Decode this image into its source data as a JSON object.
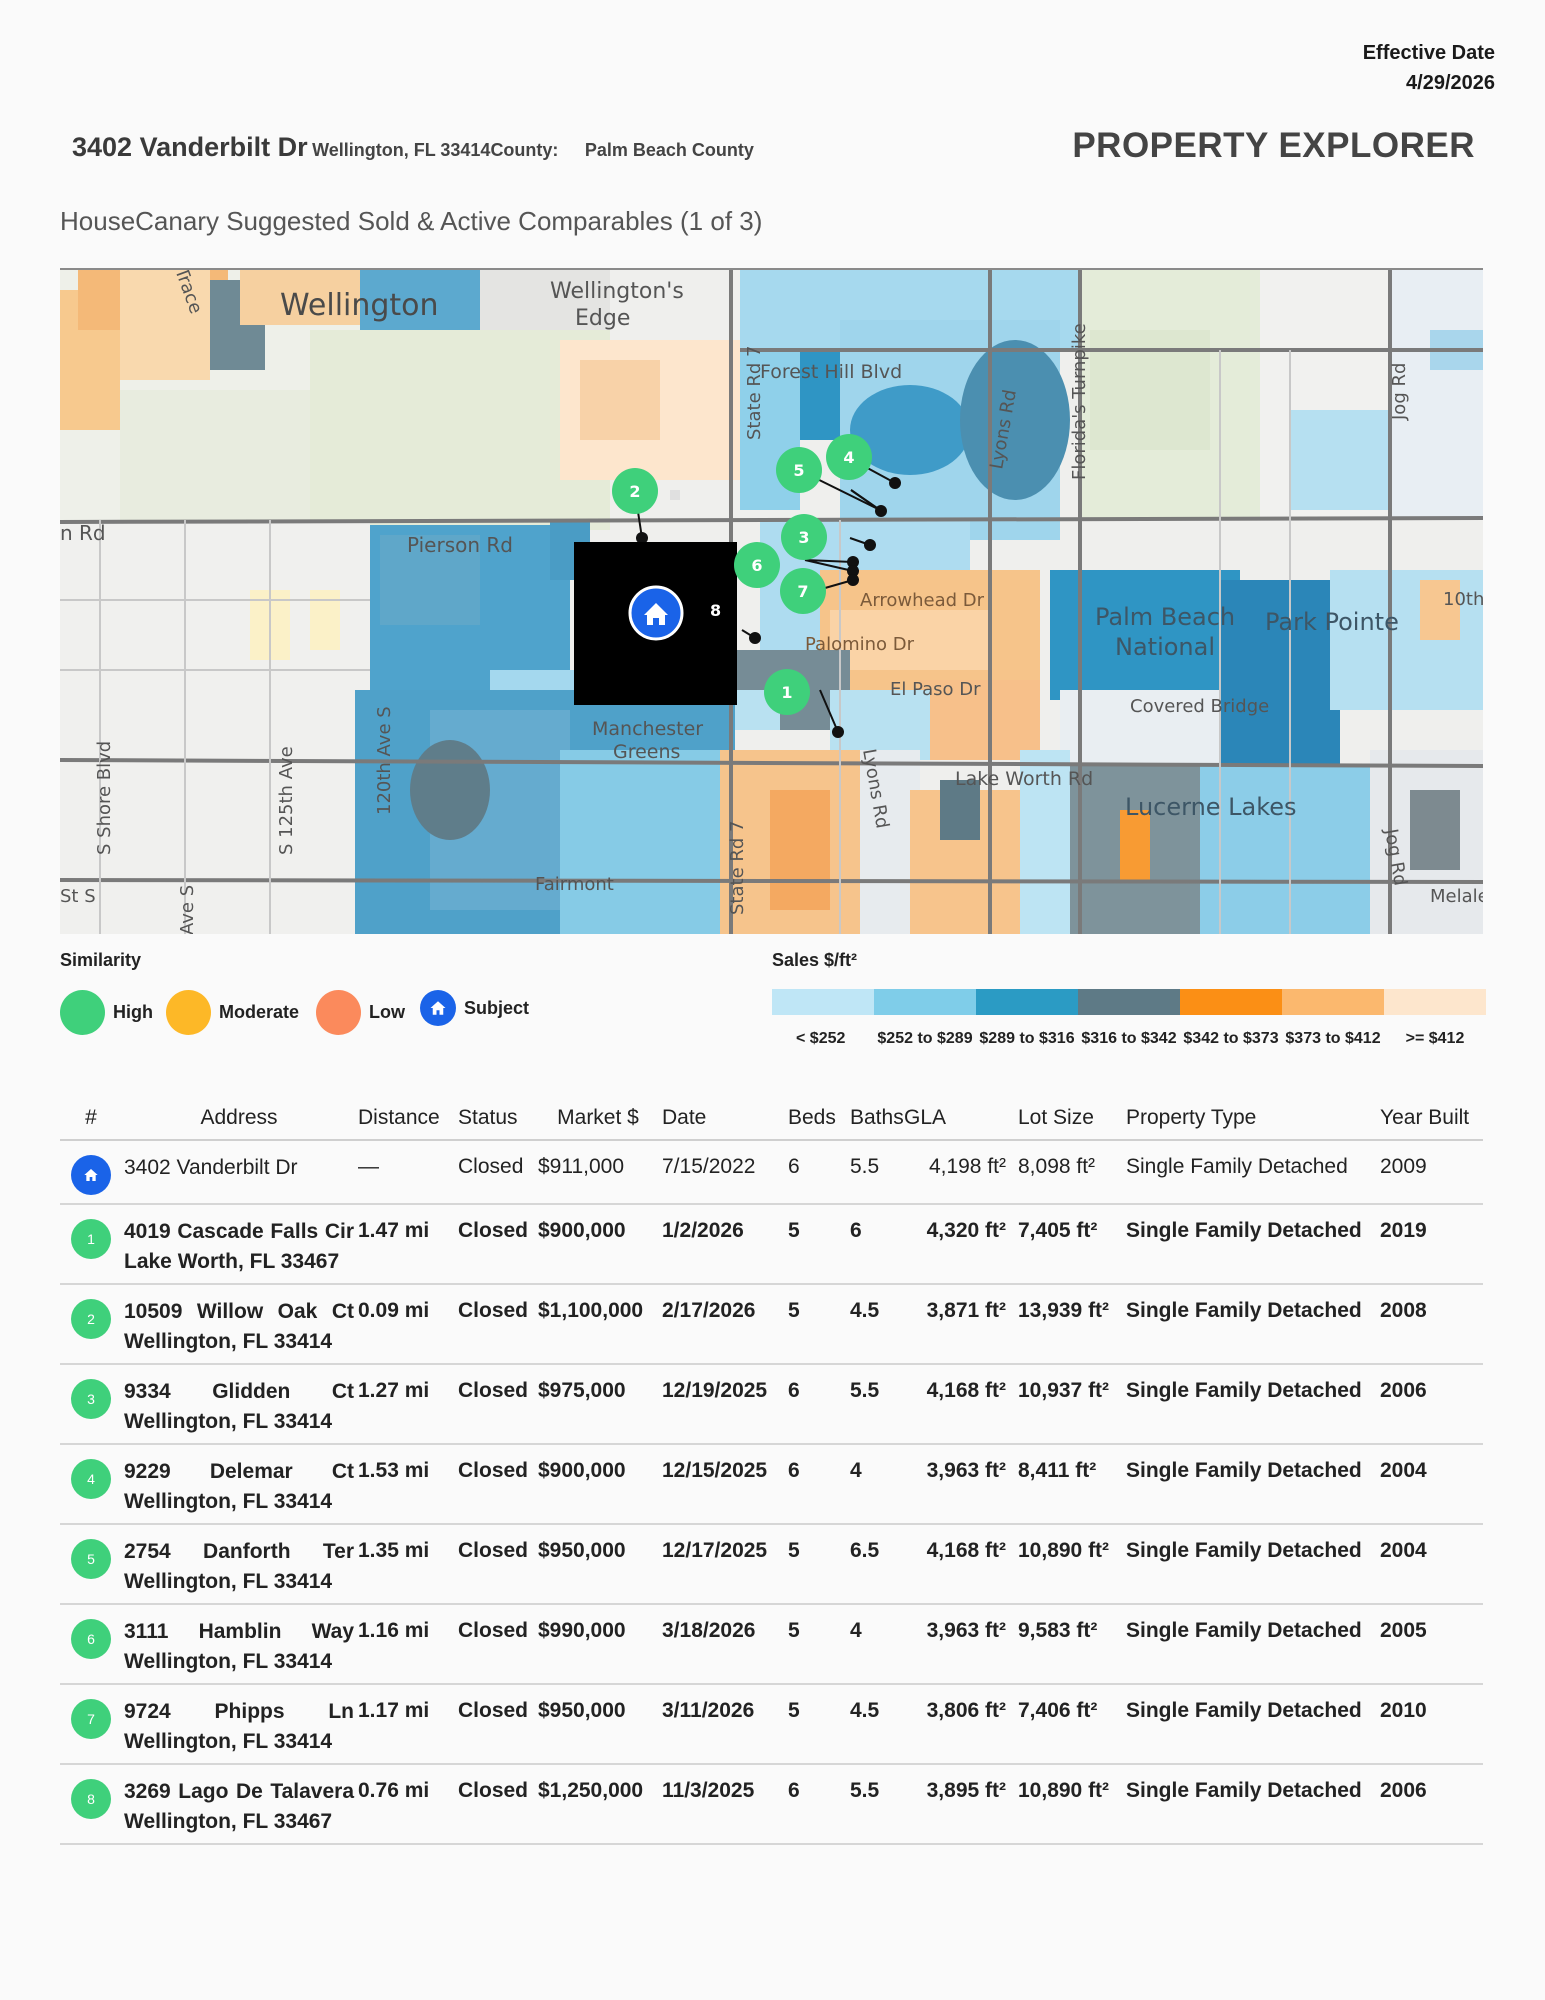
{
  "header": {
    "effective_label": "Effective Date",
    "effective_date": "4/29/2026",
    "street": "3402 Vanderbilt Dr",
    "city_line": "Wellington, FL 33414",
    "county_label": "County:",
    "county_value": "Palm Beach County",
    "brand": "PROPERTY EXPLORER",
    "section_title": "HouseCanary Suggested Sold & Active Comparables (1 of 3)"
  },
  "map": {
    "labels": {
      "wellington": "Wellington",
      "wellingtons_edge": "Wellington's Edge",
      "forest_hill": "Forest Hill Blvd",
      "state_rd_7": "State Rd 7",
      "lyons_rd": "Lyons Rd",
      "floridas_turnpike": "Florida's Turnpike",
      "jog_rd": "Jog Rd",
      "pierson_rd": "Pierson Rd",
      "n_rd": "n Rd",
      "arrowhead": "Arrowhead Dr",
      "palomino": "Palomino Dr",
      "el_paso": "El Paso Dr",
      "pbn": "Palm Beach National",
      "park_pointe": "Park Pointe",
      "covered_bridge": "Covered Bridge",
      "manchester": "Manchester Greens",
      "lake_worth": "Lake Worth Rd",
      "lucerne": "Lucerne Lakes",
      "fairmont": "Fairmont",
      "s_shore": "S Shore Blvd",
      "s_125th": "S 125th Ave",
      "s_120th": "120th Ave S",
      "st_s": "St S",
      "ave_s": "Ave S",
      "tenth": "10th",
      "melale": "Melale",
      "trace": "Trace"
    },
    "markers": [
      "1",
      "2",
      "3",
      "4",
      "5",
      "6",
      "7",
      "8"
    ],
    "subject_icon": "home-icon"
  },
  "legend": {
    "similarity_title": "Similarity",
    "items": [
      {
        "label": "High",
        "color": "#3fd07b"
      },
      {
        "label": "Moderate",
        "color": "#fdb827"
      },
      {
        "label": "Low",
        "color": "#fb8a5c"
      },
      {
        "label": "Subject",
        "color": "#1a63e8"
      }
    ],
    "sales_title": "Sales $/ft²",
    "sales_colors": [
      "#bfe6f6",
      "#7fcde9",
      "#2b9bc4",
      "#5e7a86",
      "#fb8f15",
      "#fbb86e",
      "#fde6cd"
    ],
    "sales_labels": [
      "< $252",
      "$252 to $289",
      "$289 to $316",
      "$316 to $342",
      "$342 to $373",
      "$373 to $412",
      ">= $412"
    ]
  },
  "table": {
    "headers": [
      "#",
      "Address",
      "Distance",
      "Status",
      "Market $",
      "Date",
      "Beds",
      "Baths",
      "GLA",
      "Lot Size",
      "Property Type",
      "Year Built"
    ],
    "rows": [
      {
        "badge": "",
        "address": "3402 Vanderbilt Dr",
        "distance": "—",
        "status": "Closed",
        "market": "$911,000",
        "date": "7/15/2022",
        "beds": "6",
        "baths": "5.5",
        "gla": "4,198 ft²",
        "lot": "8,098 ft²",
        "type": "Single Family Detached",
        "year": "2009"
      },
      {
        "badge": "1",
        "address": "4019 Cascade Falls Cir Lake Worth, FL 33467",
        "distance": "1.47 mi",
        "status": "Closed",
        "market": "$900,000",
        "date": "1/2/2026",
        "beds": "5",
        "baths": "6",
        "gla": "4,320 ft²",
        "lot": "7,405 ft²",
        "type": "Single Family Detached",
        "year": "2019"
      },
      {
        "badge": "2",
        "address": "10509 Willow Oak Ct Wellington, FL 33414",
        "distance": "0.09 mi",
        "status": "Closed",
        "market": "$1,100,000",
        "date": "2/17/2026",
        "beds": "5",
        "baths": "4.5",
        "gla": "3,871 ft²",
        "lot": "13,939 ft²",
        "type": "Single Family Detached",
        "year": "2008"
      },
      {
        "badge": "3",
        "address": "9334 Glidden Ct Wellington, FL 33414",
        "distance": "1.27 mi",
        "status": "Closed",
        "market": "$975,000",
        "date": "12/19/2025",
        "beds": "6",
        "baths": "5.5",
        "gla": "4,168 ft²",
        "lot": "10,937 ft²",
        "type": "Single Family Detached",
        "year": "2006"
      },
      {
        "badge": "4",
        "address": "9229 Delemar Ct Wellington, FL 33414",
        "distance": "1.53 mi",
        "status": "Closed",
        "market": "$900,000",
        "date": "12/15/2025",
        "beds": "6",
        "baths": "4",
        "gla": "3,963 ft²",
        "lot": "8,411 ft²",
        "type": "Single Family Detached",
        "year": "2004"
      },
      {
        "badge": "5",
        "address": "2754 Danforth Ter Wellington, FL 33414",
        "distance": "1.35 mi",
        "status": "Closed",
        "market": "$950,000",
        "date": "12/17/2025",
        "beds": "5",
        "baths": "6.5",
        "gla": "4,168 ft²",
        "lot": "10,890 ft²",
        "type": "Single Family Detached",
        "year": "2004"
      },
      {
        "badge": "6",
        "address": "3111 Hamblin Way Wellington, FL 33414",
        "distance": "1.16 mi",
        "status": "Closed",
        "market": "$990,000",
        "date": "3/18/2026",
        "beds": "5",
        "baths": "4",
        "gla": "3,963 ft²",
        "lot": "9,583 ft²",
        "type": "Single Family Detached",
        "year": "2005"
      },
      {
        "badge": "7",
        "address": "9724 Phipps Ln Wellington, FL 33414",
        "distance": "1.17 mi",
        "status": "Closed",
        "market": "$950,000",
        "date": "3/11/2026",
        "beds": "5",
        "baths": "4.5",
        "gla": "3,806 ft²",
        "lot": "7,406 ft²",
        "type": "Single Family Detached",
        "year": "2010"
      },
      {
        "badge": "8",
        "address": "3269 Lago De Talavera Wellington, FL 33467",
        "distance": "0.76 mi",
        "status": "Closed",
        "market": "$1,250,000",
        "date": "11/3/2025",
        "beds": "6",
        "baths": "5.5",
        "gla": "3,895 ft²",
        "lot": "10,890 ft²",
        "type": "Single Family Detached",
        "year": "2006"
      }
    ]
  }
}
